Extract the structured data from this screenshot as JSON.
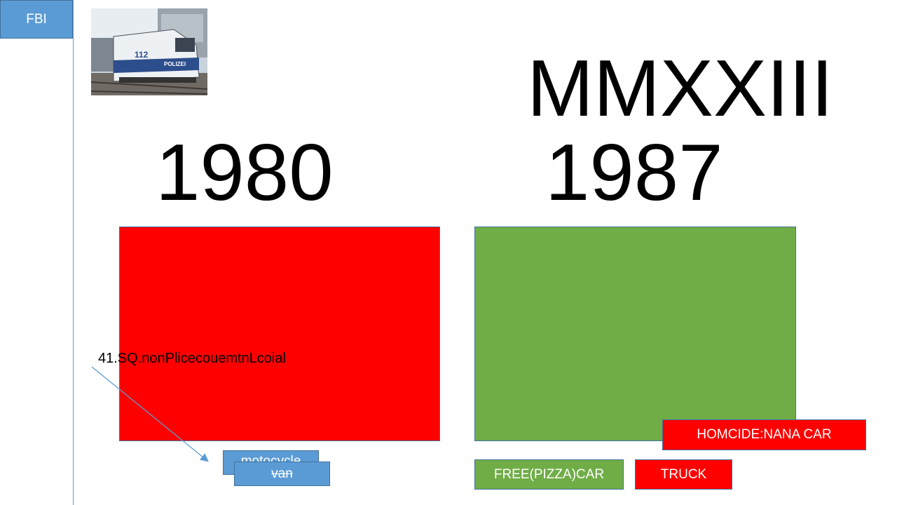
{
  "header": {
    "fbi_label": "FBI"
  },
  "photo": {
    "badge_text": "POLIZEI",
    "number_text": "112"
  },
  "headings": {
    "roman": "MMXXIII",
    "year_left": "1980",
    "year_right": "1987"
  },
  "annotation": {
    "text": "41.SQ.nonPlicecouemtnLcoial"
  },
  "buttons": {
    "motorcycle": "motocycle",
    "van": "van",
    "homicide": "HOMCIDE:NANA CAR",
    "free_pizza": "FREE(PIZZA)CAR",
    "truck": "TRUCK"
  },
  "colors": {
    "blue": "#5b9bd5",
    "red": "#ff0000",
    "green": "#70ad47",
    "border": "#41719c"
  }
}
